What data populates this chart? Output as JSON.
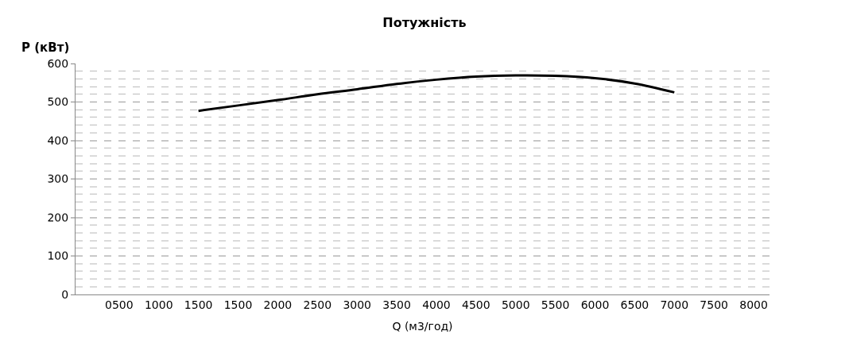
{
  "chart_data": {
    "type": "line",
    "title": "Потужність",
    "xlabel": "Q (м3/год)",
    "ylabel": "P (кВт)",
    "categories": [
      "0500",
      "1000",
      "1500",
      "1500",
      "2000",
      "2500",
      "3000",
      "3500",
      "4000",
      "4500",
      "5000",
      "5500",
      "6000",
      "6500",
      "7000",
      "7500",
      "8000"
    ],
    "series": [
      {
        "color": "#000000",
        "values": [
          null,
          null,
          477,
          491,
          505,
          520,
          533,
          547,
          558,
          566,
          569,
          568,
          562,
          548,
          525,
          null,
          null
        ]
      }
    ],
    "ylim": [
      0,
      600
    ],
    "yticks": [
      0,
      100,
      200,
      300,
      400,
      500,
      600
    ],
    "grid": "y",
    "marker": "none",
    "line_style": "solid"
  }
}
